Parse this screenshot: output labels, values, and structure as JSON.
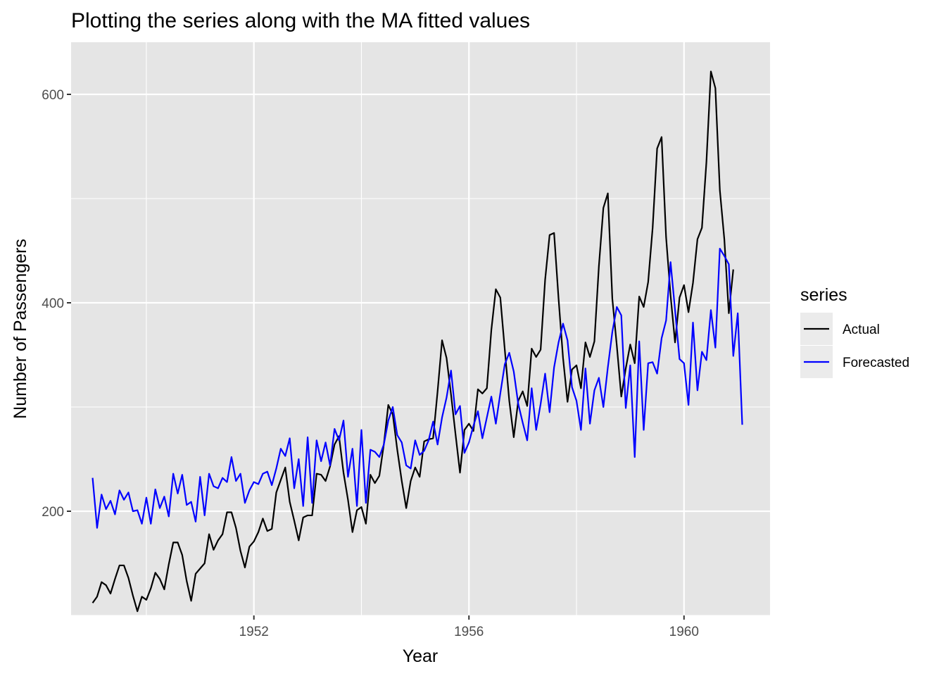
{
  "chart_data": {
    "type": "line",
    "title": "Plotting the series along with the MA fitted values",
    "xlabel": "Year",
    "ylabel": "Number of Passengers",
    "xlim": [
      1948.6,
      1961.6
    ],
    "ylim": [
      100,
      650
    ],
    "x_ticks": [
      1952,
      1956,
      1960
    ],
    "y_ticks": [
      200,
      400,
      600
    ],
    "grid": true,
    "legend": {
      "title": "series",
      "placement": "right"
    },
    "colors": {
      "Actual": "#000000",
      "Forecasted": "#0000ff",
      "panel": "#e5e5e5",
      "grid": "#ffffff"
    },
    "x_start": {
      "year": 1949,
      "month": 1
    },
    "series": [
      {
        "name": "Actual",
        "values": [
          112,
          118,
          132,
          129,
          121,
          135,
          148,
          148,
          136,
          119,
          104,
          118,
          115,
          126,
          141,
          135,
          125,
          149,
          170,
          170,
          158,
          133,
          114,
          140,
          145,
          150,
          178,
          163,
          172,
          178,
          199,
          199,
          184,
          162,
          146,
          166,
          171,
          180,
          193,
          181,
          183,
          218,
          230,
          242,
          209,
          191,
          172,
          194,
          196,
          196,
          236,
          235,
          229,
          243,
          264,
          272,
          237,
          211,
          180,
          201,
          204,
          188,
          235,
          227,
          234,
          264,
          302,
          293,
          259,
          229,
          203,
          229,
          242,
          233,
          267,
          269,
          270,
          315,
          364,
          347,
          312,
          274,
          237,
          278,
          284,
          277,
          317,
          313,
          318,
          374,
          413,
          405,
          355,
          306,
          271,
          306,
          315,
          301,
          356,
          348,
          355,
          422,
          465,
          467,
          404,
          347,
          305,
          336,
          340,
          318,
          362,
          348,
          363,
          435,
          491,
          505,
          404,
          359,
          310,
          337,
          360,
          342,
          406,
          396,
          420,
          472,
          548,
          559,
          463,
          407,
          362,
          405,
          417,
          391,
          419,
          461,
          472,
          535,
          622,
          606,
          508,
          461,
          390,
          432
        ]
      },
      {
        "name": "Forecasted",
        "values": [
          232,
          184,
          216,
          202,
          210,
          197,
          220,
          211,
          218,
          200,
          201,
          188,
          213,
          188,
          221,
          203,
          214,
          195,
          236,
          217,
          235,
          206,
          209,
          190,
          233,
          196,
          236,
          224,
          222,
          232,
          228,
          252,
          229,
          236,
          208,
          220,
          228,
          226,
          236,
          238,
          225,
          241,
          260,
          253,
          270,
          222,
          250,
          205,
          271,
          208,
          268,
          248,
          266,
          244,
          279,
          268,
          287,
          233,
          260,
          205,
          278,
          208,
          259,
          257,
          252,
          264,
          287,
          300,
          273,
          266,
          244,
          241,
          268,
          254,
          258,
          268,
          286,
          264,
          290,
          309,
          335,
          293,
          301,
          256,
          266,
          282,
          296,
          270,
          290,
          310,
          284,
          313,
          341,
          352,
          334,
          303,
          285,
          268,
          318,
          278,
          303,
          332,
          295,
          338,
          362,
          380,
          364,
          319,
          306,
          278,
          337,
          284,
          316,
          328,
          300,
          338,
          372,
          396,
          388,
          299,
          340,
          252,
          363,
          278,
          342,
          343,
          332,
          366,
          383,
          439,
          393,
          346,
          342,
          302,
          381,
          316,
          353,
          345,
          393,
          357,
          452,
          445,
          437,
          349,
          390,
          283
        ]
      }
    ]
  }
}
